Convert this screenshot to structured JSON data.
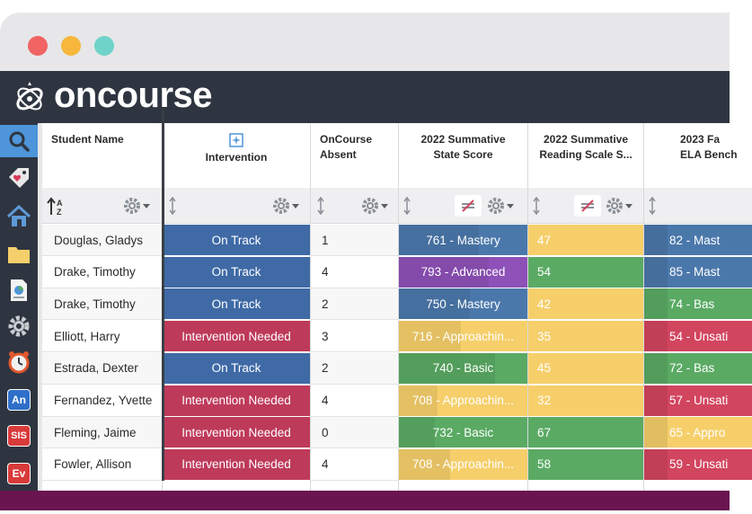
{
  "window": {
    "controls": [
      "close",
      "minimize",
      "maximize"
    ]
  },
  "brand": {
    "name": "oncourse",
    "icon": "oncourse-atom-logo-icon"
  },
  "sidebar": {
    "items": [
      {
        "name": "search-icon",
        "active": true
      },
      {
        "name": "tag-heart-icon"
      },
      {
        "name": "home-icon"
      },
      {
        "name": "folder-icon"
      },
      {
        "name": "report-document-icon"
      },
      {
        "name": "gear-icon"
      },
      {
        "name": "alarm-clock-icon"
      },
      {
        "name": "analytics-app-icon",
        "label": "An",
        "color": "#2f6fc9"
      },
      {
        "name": "sis-app-icon",
        "label": "SIS",
        "color": "#d93a3a"
      },
      {
        "name": "ev-app-icon",
        "label": "Ev",
        "color": "#d93a3a"
      }
    ]
  },
  "colors": {
    "on_track": "#3f6aa6",
    "intervention_needed": "#be3a5a",
    "mastery": "#4b78ab",
    "advanced": "#8e51b8",
    "basic": "#5aaa64",
    "approaching": "#f6cf6b",
    "reading_yellow": "#f6cf6b",
    "reading_green": "#5aaa64",
    "unsatisfactory": "#d2455f",
    "footer": "#6a1550"
  },
  "columns": {
    "student_name": "Student Name",
    "intervention": "Intervention",
    "absent": [
      "OnCourse",
      "Absent"
    ],
    "state_score": [
      "2022 Summative",
      "State Score"
    ],
    "reading": [
      "2022 Summative",
      "Reading Scale S..."
    ],
    "ela": [
      "2023 Fa",
      "ELA Bench"
    ]
  },
  "rows": [
    {
      "name": "Douglas, Gladys",
      "intervention": "On Track",
      "absent": "1",
      "state": "761 - Mastery",
      "state_level": "mastery",
      "reading": "47",
      "reading_level": "yellow",
      "ela": "82 - Mast",
      "ela_level": "mastery"
    },
    {
      "name": "Drake, Timothy",
      "intervention": "On Track",
      "absent": "4",
      "state": "793 - Advanced",
      "state_level": "advanced",
      "reading": "54",
      "reading_level": "green",
      "ela": "85 - Mast",
      "ela_level": "mastery"
    },
    {
      "name": "Drake, Timothy",
      "intervention": "On Track",
      "absent": "2",
      "state": "750 - Mastery",
      "state_level": "mastery",
      "reading": "42",
      "reading_level": "yellow",
      "ela": "74 - Bas",
      "ela_level": "basic"
    },
    {
      "name": "Elliott, Harry",
      "intervention": "Intervention Needed",
      "absent": "3",
      "state": "716 - Approachin...",
      "state_level": "approaching",
      "reading": "35",
      "reading_level": "yellow",
      "ela": "54 - Unsati",
      "ela_level": "unsatisfactory"
    },
    {
      "name": "Estrada, Dexter",
      "intervention": "On Track",
      "absent": "2",
      "state": "740 - Basic",
      "state_level": "basic",
      "reading": "45",
      "reading_level": "yellow",
      "ela": "72 - Bas",
      "ela_level": "basic"
    },
    {
      "name": "Fernandez, Yvette",
      "intervention": "Intervention Needed",
      "absent": "4",
      "state": "708 - Approachin...",
      "state_level": "approaching",
      "reading": "32",
      "reading_level": "yellow",
      "ela": "57 - Unsati",
      "ela_level": "unsatisfactory"
    },
    {
      "name": "Fleming, Jaime",
      "intervention": "Intervention Needed",
      "absent": "0",
      "state": "732 - Basic",
      "state_level": "basic",
      "reading": "67",
      "reading_level": "green",
      "ela": "65 - Appro",
      "ela_level": "approaching"
    },
    {
      "name": "Fowler, Allison",
      "intervention": "Intervention Needed",
      "absent": "4",
      "state": "708 - Approachin...",
      "state_level": "approaching",
      "reading": "58",
      "reading_level": "green",
      "ela": "59 - Unsati",
      "ela_level": "unsatisfactory"
    }
  ]
}
